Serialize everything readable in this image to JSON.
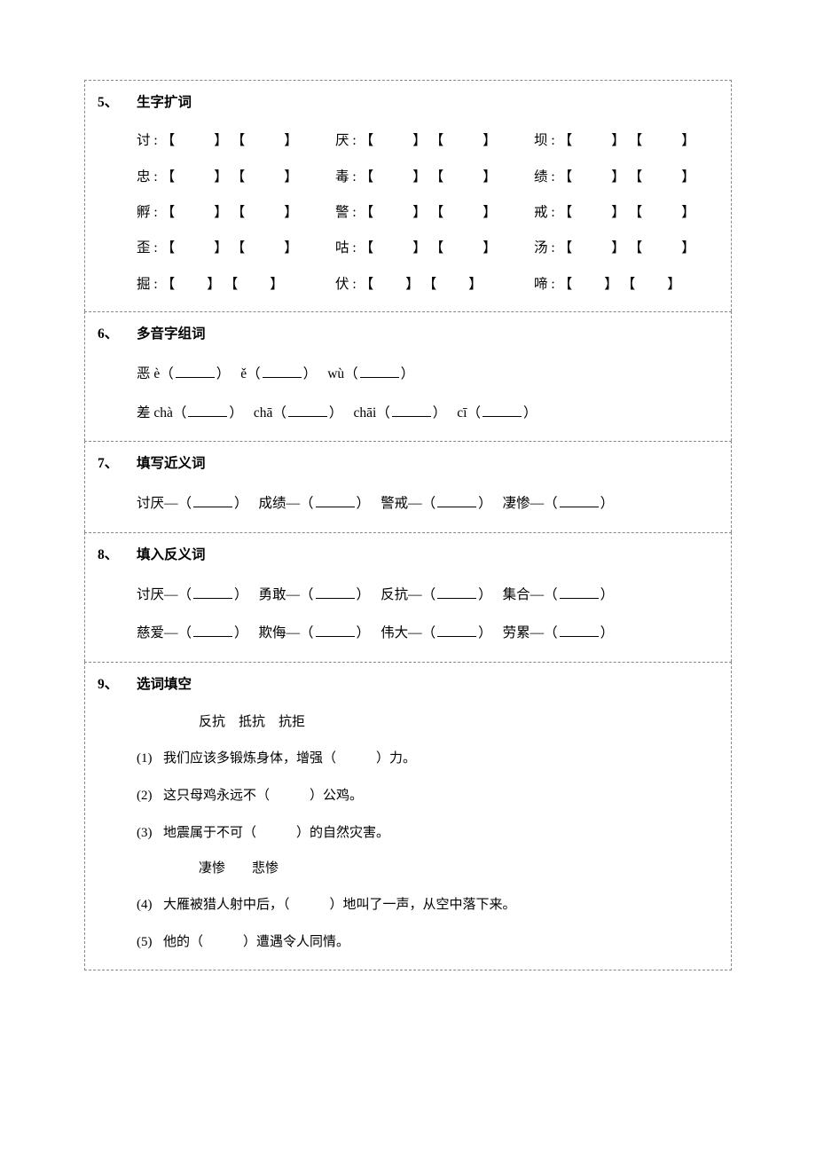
{
  "sections": {
    "q5": {
      "num": "5、",
      "title": "生字扩词",
      "rows": [
        [
          "讨",
          "厌",
          "坝"
        ],
        [
          "忠",
          "毒",
          "绩"
        ],
        [
          "孵",
          "警",
          "戒"
        ],
        [
          "歪",
          "咕",
          "汤"
        ],
        [
          "掘",
          "伏",
          "啼"
        ]
      ],
      "brackets": {
        "open": "【",
        "close": "】"
      }
    },
    "q6": {
      "num": "6、",
      "title": "多音字组词",
      "lines": [
        [
          {
            "t": "恶 è（",
            "k": "txt"
          },
          {
            "k": "blank"
          },
          {
            "t": "）",
            "k": "txt"
          },
          {
            "k": "pad"
          },
          {
            "t": "ě（",
            "k": "txt"
          },
          {
            "k": "blank"
          },
          {
            "t": "）",
            "k": "txt"
          },
          {
            "k": "pad"
          },
          {
            "t": "wù（",
            "k": "txt"
          },
          {
            "k": "blank"
          },
          {
            "t": "）",
            "k": "txt"
          }
        ],
        [
          {
            "t": "差 chà（",
            "k": "txt"
          },
          {
            "k": "blank"
          },
          {
            "t": "）",
            "k": "txt"
          },
          {
            "k": "pad"
          },
          {
            "t": "chā（",
            "k": "txt"
          },
          {
            "k": "blank"
          },
          {
            "t": "）",
            "k": "txt"
          },
          {
            "k": "pad"
          },
          {
            "t": "chāi（",
            "k": "txt"
          },
          {
            "k": "blank"
          },
          {
            "t": "）",
            "k": "txt"
          },
          {
            "k": "pad"
          },
          {
            "t": "cī（",
            "k": "txt"
          },
          {
            "k": "blank"
          },
          {
            "t": "）",
            "k": "txt"
          }
        ]
      ]
    },
    "q7": {
      "num": "7、",
      "title": "填写近义词",
      "lines": [
        [
          {
            "t": "讨厌—（",
            "k": "txt"
          },
          {
            "k": "blank"
          },
          {
            "t": "）",
            "k": "txt"
          },
          {
            "k": "pad"
          },
          {
            "t": "成绩—（",
            "k": "txt"
          },
          {
            "k": "blank"
          },
          {
            "t": "）",
            "k": "txt"
          },
          {
            "k": "pad"
          },
          {
            "t": "警戒—（",
            "k": "txt"
          },
          {
            "k": "blank"
          },
          {
            "t": "）",
            "k": "txt"
          },
          {
            "k": "pad"
          },
          {
            "t": "凄惨—（",
            "k": "txt"
          },
          {
            "k": "blank"
          },
          {
            "t": "）",
            "k": "txt"
          }
        ]
      ]
    },
    "q8": {
      "num": "8、",
      "title": "填入反义词",
      "lines": [
        [
          {
            "t": "讨厌—（",
            "k": "txt"
          },
          {
            "k": "blank"
          },
          {
            "t": "）",
            "k": "txt"
          },
          {
            "k": "pad"
          },
          {
            "t": "勇敢—（",
            "k": "txt"
          },
          {
            "k": "blank"
          },
          {
            "t": "）",
            "k": "txt"
          },
          {
            "k": "pad"
          },
          {
            "t": "反抗—（",
            "k": "txt"
          },
          {
            "k": "blank"
          },
          {
            "t": "）",
            "k": "txt"
          },
          {
            "k": "pad"
          },
          {
            "t": "集合—（",
            "k": "txt"
          },
          {
            "k": "blank"
          },
          {
            "t": "）",
            "k": "txt"
          }
        ],
        [
          {
            "t": "慈爱—（",
            "k": "txt"
          },
          {
            "k": "blank"
          },
          {
            "t": "）",
            "k": "txt"
          },
          {
            "k": "pad"
          },
          {
            "t": "欺侮—（",
            "k": "txt"
          },
          {
            "k": "blank"
          },
          {
            "t": "）",
            "k": "txt"
          },
          {
            "k": "pad"
          },
          {
            "t": "伟大—（",
            "k": "txt"
          },
          {
            "k": "blank"
          },
          {
            "t": "）",
            "k": "txt"
          },
          {
            "k": "pad"
          },
          {
            "t": "劳累—（",
            "k": "txt"
          },
          {
            "k": "blank"
          },
          {
            "t": "）",
            "k": "txt"
          }
        ]
      ]
    },
    "q9": {
      "num": "9、",
      "title": "选词填空",
      "groups": [
        {
          "options": "反抗　抵抗　抗拒",
          "items": [
            {
              "n": "(1)",
              "pre": "我们应该多锻炼身体，增强",
              "post": "力。"
            },
            {
              "n": "(2)",
              "pre": "这只母鸡永远不",
              "post": "公鸡。"
            },
            {
              "n": "(3)",
              "pre": "地震属于不可",
              "post": "的自然灾害。"
            }
          ]
        },
        {
          "options": "凄惨　　悲惨",
          "items": [
            {
              "n": "(4)",
              "pre": "大雁被猎人射中后，",
              "post": "地叫了一声，从空中落下来。"
            },
            {
              "n": "(5)",
              "pre": "他的",
              "post": "遭遇令人同情。"
            }
          ]
        }
      ]
    }
  }
}
